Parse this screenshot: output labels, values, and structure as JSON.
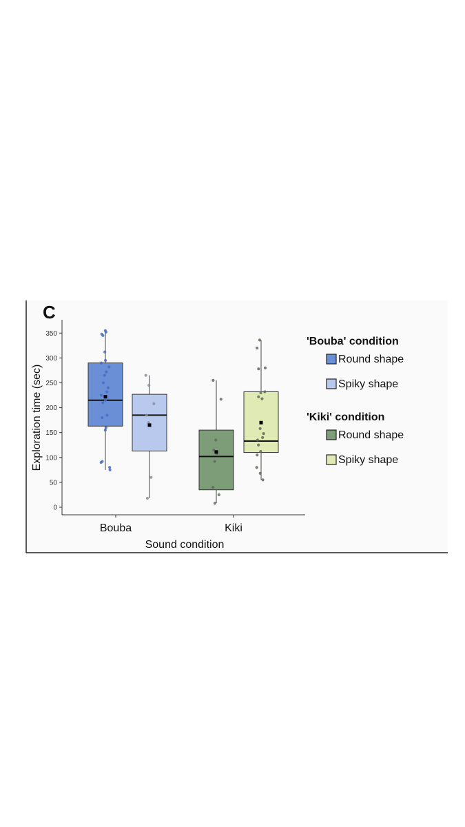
{
  "panel_letter": "C",
  "chart_data": {
    "type": "box",
    "xlabel": "Sound condition",
    "ylabel": "Exploration time (sec)",
    "ylim": [
      0,
      370
    ],
    "yticks": [
      0,
      50,
      100,
      150,
      200,
      250,
      300,
      350
    ],
    "categories": [
      "Bouba",
      "Kiki"
    ],
    "legend": [
      {
        "title": "'Bouba' condition",
        "items": [
          {
            "label": "Round shape",
            "color": "#6b8fd6"
          },
          {
            "label": "Spiky shape",
            "color": "#b9c9ee"
          }
        ]
      },
      {
        "title": "'Kiki' condition",
        "items": [
          {
            "label": "Round shape",
            "color": "#7d9d78"
          },
          {
            "label": "Spiky shape",
            "color": "#e0eab4"
          }
        ]
      }
    ],
    "series": [
      {
        "category": "Bouba",
        "group": "Round shape",
        "color": "#6b8fd6",
        "point_color": "#4a6cc0",
        "whisker_low": 75,
        "q1": 163,
        "median": 215,
        "q3": 290,
        "whisker_high": 355,
        "mean": 222,
        "points": [
          355,
          352,
          348,
          345,
          312,
          295,
          290,
          282,
          272,
          265,
          250,
          240,
          232,
          225,
          215,
          210,
          185,
          180,
          160,
          155,
          92,
          90,
          80,
          75
        ]
      },
      {
        "category": "Bouba",
        "group": "Spiky shape",
        "color": "#b9c9ee",
        "point_color": "#8a8f99",
        "whisker_low": 18,
        "q1": 113,
        "median": 185,
        "q3": 227,
        "whisker_high": 265,
        "mean": 165,
        "points": [
          265,
          245,
          208,
          185,
          170,
          165,
          60,
          18
        ]
      },
      {
        "category": "Kiki",
        "group": "Round shape",
        "color": "#7d9d78",
        "point_color": "#5f6b5c",
        "whisker_low": 8,
        "q1": 35,
        "median": 102,
        "q3": 155,
        "whisker_high": 255,
        "mean": 111,
        "points": [
          255,
          217,
          135,
          115,
          108,
          92,
          40,
          25,
          8
        ]
      },
      {
        "category": "Kiki",
        "group": "Spiky shape",
        "color": "#e0eab4",
        "point_color": "#5f6b5c",
        "whisker_low": 55,
        "q1": 110,
        "median": 133,
        "q3": 232,
        "whisker_high": 336,
        "mean": 170,
        "points": [
          336,
          320,
          280,
          278,
          232,
          230,
          222,
          218,
          158,
          148,
          140,
          135,
          125,
          112,
          105,
          80,
          68,
          55
        ]
      }
    ]
  }
}
